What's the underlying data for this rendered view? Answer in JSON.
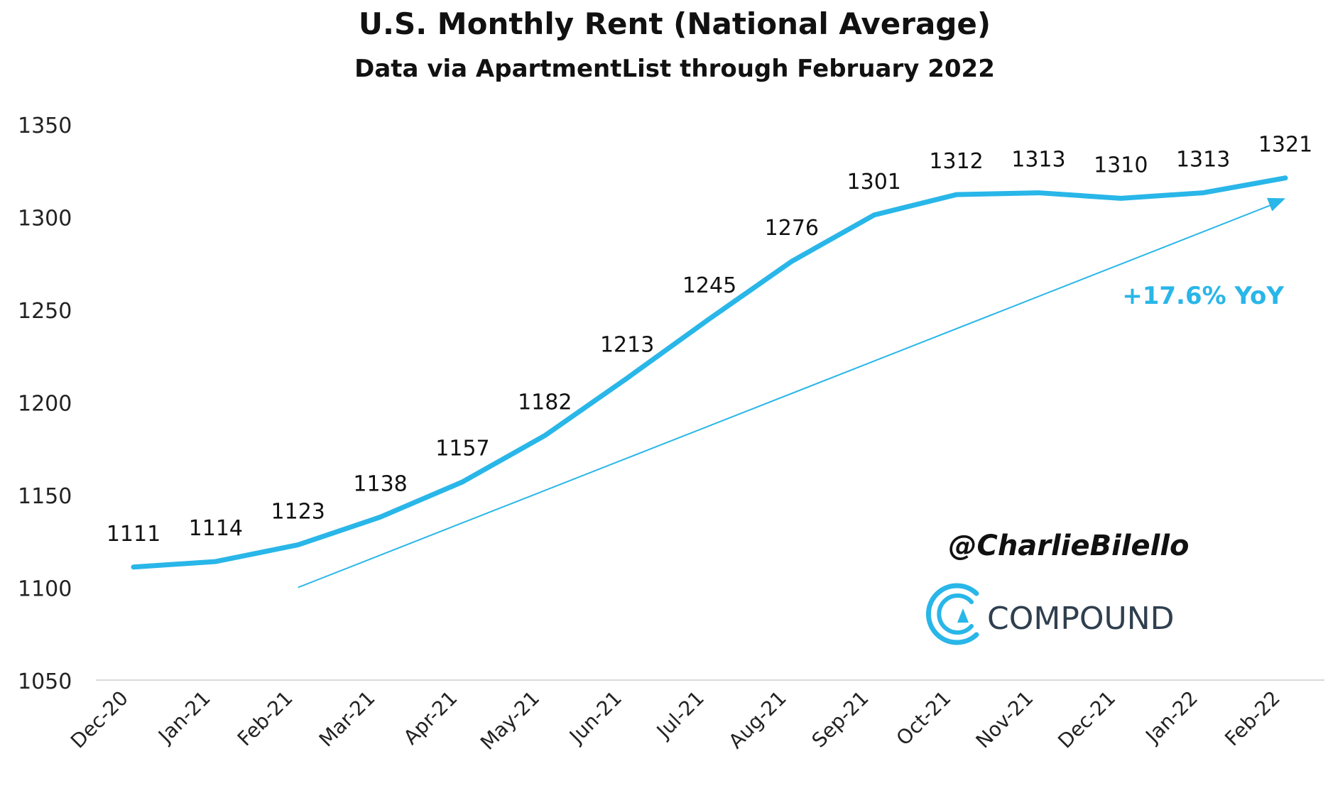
{
  "chart_data": {
    "type": "line",
    "title": "U.S. Monthly Rent (National Average)",
    "subtitle": "Data via ApartmentList through February 2022",
    "xlabel": "",
    "ylabel": "",
    "categories": [
      "Dec-20",
      "Jan-21",
      "Feb-21",
      "Mar-21",
      "Apr-21",
      "May-21",
      "Jun-21",
      "Jul-21",
      "Aug-21",
      "Sep-21",
      "Oct-21",
      "Nov-21",
      "Dec-21",
      "Jan-22",
      "Feb-22"
    ],
    "series": [
      {
        "values": [
          1111,
          1114,
          1123,
          1138,
          1157,
          1182,
          1213,
          1245,
          1276,
          1301,
          1312,
          1313,
          1310,
          1313,
          1321
        ]
      }
    ],
    "ylim": [
      1050,
      1350
    ],
    "yticks": [
      1050,
      1100,
      1150,
      1200,
      1250,
      1300,
      1350
    ],
    "grid": false,
    "trend_arrow": {
      "from": {
        "x": "Feb-21",
        "y": 1100
      },
      "to": {
        "x": "Feb-22",
        "y": 1310
      }
    },
    "annotation": "+17.6% YoY",
    "colors": {
      "line": "#29b6e8",
      "annotation": "#29b6e8",
      "axis": "#d9d9d9"
    }
  },
  "branding": {
    "handle": "@CharlieBilello",
    "logo_text": "COMPOUND",
    "logo_icon": "compound-logo-icon"
  }
}
